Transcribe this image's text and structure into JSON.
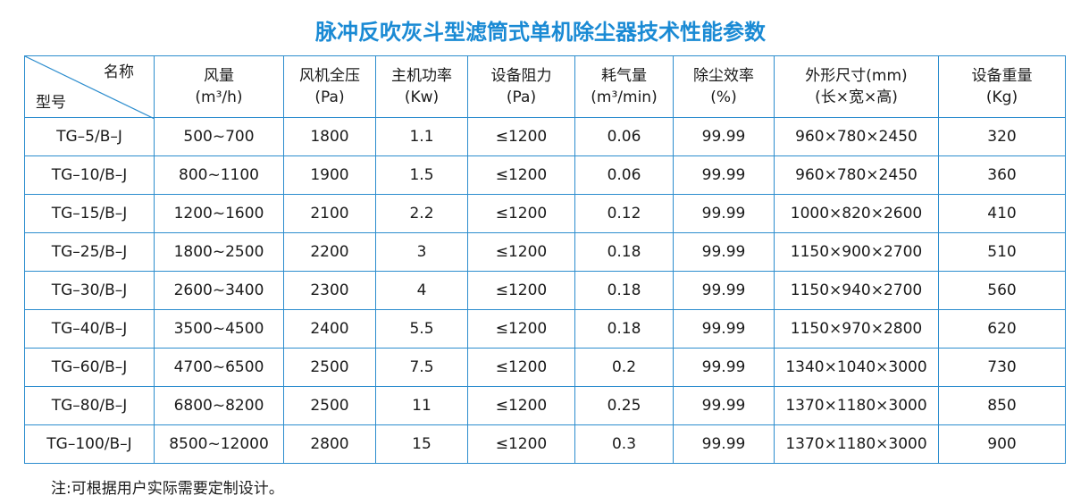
{
  "header": {
    "title": "脉冲反吹灰斗型滤筒式单机除尘器技术性能参数"
  },
  "table": {
    "corner": {
      "top": "名称",
      "bottom": "型号"
    },
    "columns": [
      [
        "风量",
        "(m³/h)"
      ],
      [
        "风机全压",
        "(Pa)"
      ],
      [
        "主机功率",
        "(Kw)"
      ],
      [
        "设备阻力",
        "(Pa)"
      ],
      [
        "耗气量",
        "(m³/min)"
      ],
      [
        "除尘效率",
        "(%)"
      ],
      [
        "外形尺寸(mm)",
        "(长×宽×高)"
      ],
      [
        "设备重量",
        "(Kg)"
      ]
    ],
    "rows": [
      [
        "TG–5/B–J",
        "500~700",
        "1800",
        "1.1",
        "≤1200",
        "0.06",
        "99.99",
        "960×780×2450",
        "320"
      ],
      [
        "TG–10/B–J",
        "800~1100",
        "1900",
        "1.5",
        "≤1200",
        "0.06",
        "99.99",
        "960×780×2450",
        "360"
      ],
      [
        "TG–15/B–J",
        "1200~1600",
        "2100",
        "2.2",
        "≤1200",
        "0.12",
        "99.99",
        "1000×820×2600",
        "410"
      ],
      [
        "TG–25/B–J",
        "1800~2500",
        "2200",
        "3",
        "≤1200",
        "0.18",
        "99.99",
        "1150×900×2700",
        "510"
      ],
      [
        "TG–30/B–J",
        "2600~3400",
        "2300",
        "4",
        "≤1200",
        "0.18",
        "99.99",
        "1150×940×2700",
        "560"
      ],
      [
        "TG–40/B–J",
        "3500~4500",
        "2400",
        "5.5",
        "≤1200",
        "0.18",
        "99.99",
        "1150×970×2800",
        "620"
      ],
      [
        "TG–60/B–J",
        "4700~6500",
        "2500",
        "7.5",
        "≤1200",
        "0.2",
        "99.99",
        "1340×1040×3000",
        "730"
      ],
      [
        "TG–80/B–J",
        "6800~8200",
        "2500",
        "11",
        "≤1200",
        "0.25",
        "99.99",
        "1370×1180×3000",
        "850"
      ],
      [
        "TG–100/B–J",
        "8500~12000",
        "2800",
        "15",
        "≤1200",
        "0.3",
        "99.99",
        "1370×1180×3000",
        "900"
      ]
    ]
  },
  "note": "注:可根据用户实际需要定制设计。"
}
